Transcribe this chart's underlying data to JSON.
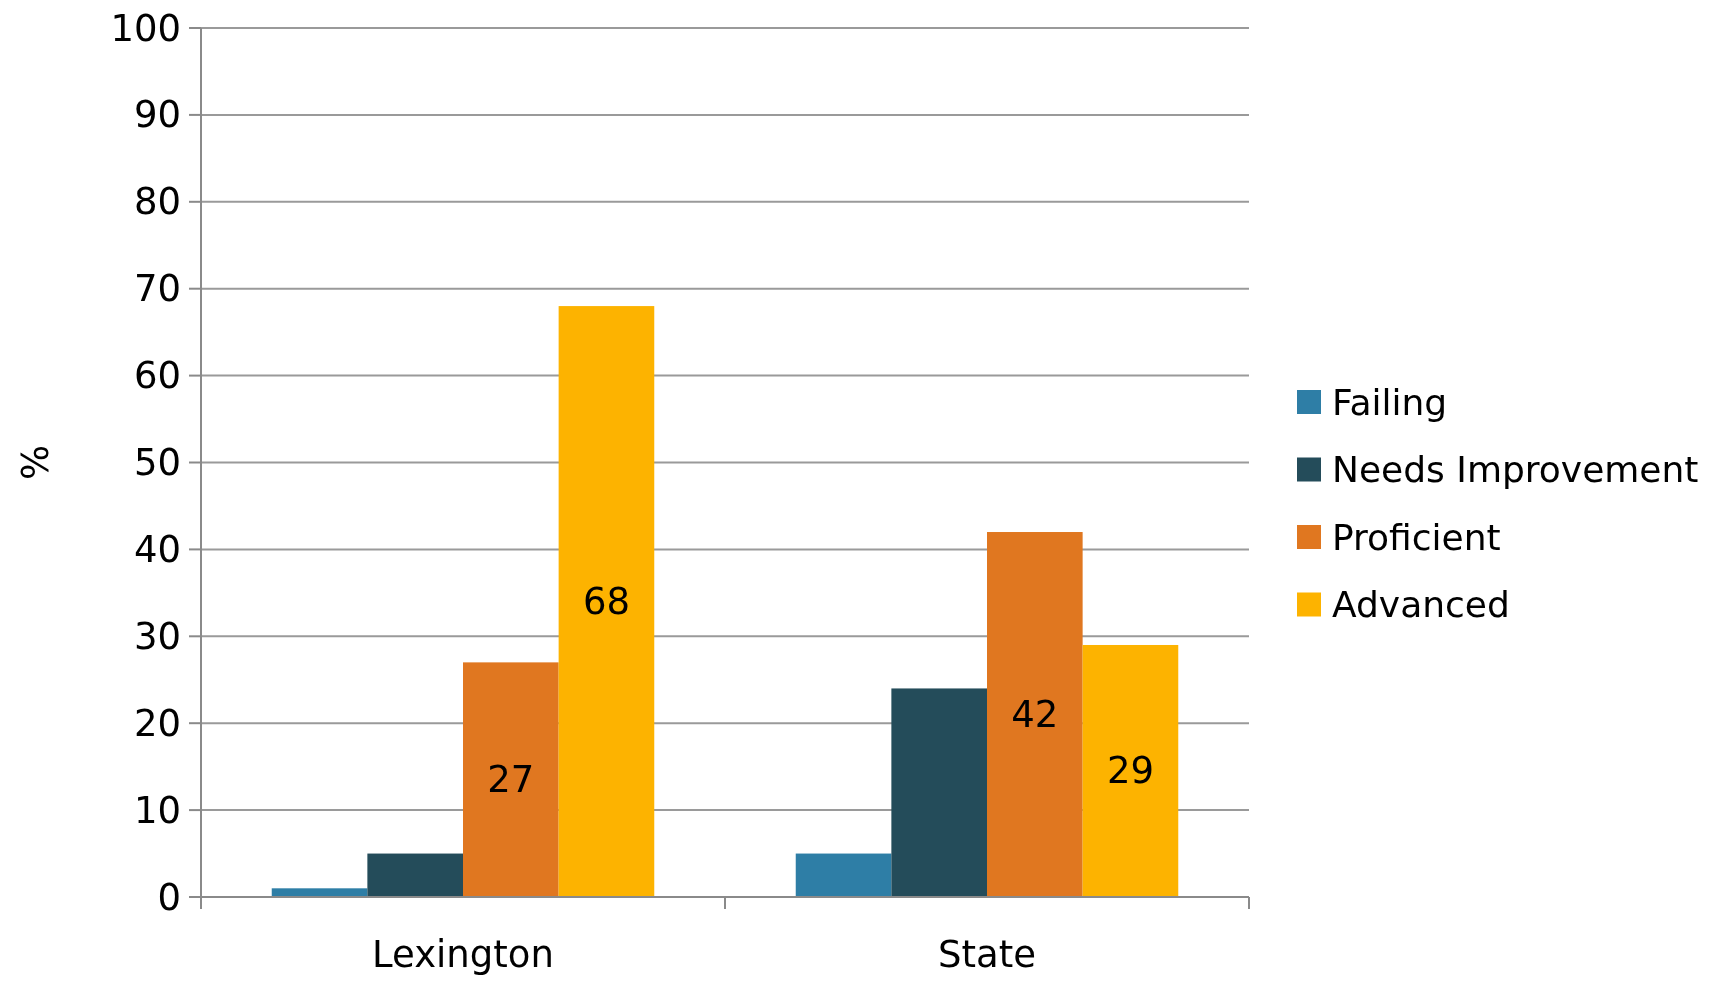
{
  "chart_data": {
    "type": "bar",
    "ylabel": "%",
    "categories": [
      "Lexington",
      "State"
    ],
    "series": [
      {
        "name": "Failing",
        "color": "#2e7ea6",
        "values": [
          1,
          5
        ],
        "value_labels": [
          null,
          null
        ]
      },
      {
        "name": "Needs Improvement",
        "color": "#244c5a",
        "values": [
          5,
          24
        ],
        "value_labels": [
          null,
          null
        ]
      },
      {
        "name": "Proficient",
        "color": "#e07720",
        "values": [
          27,
          42
        ],
        "value_labels": [
          "27",
          "42"
        ]
      },
      {
        "name": "Advanced",
        "color": "#fdb300",
        "values": [
          68,
          29
        ],
        "value_labels": [
          "68",
          "29"
        ]
      }
    ],
    "ylim": [
      0,
      100
    ],
    "yticks": [
      0,
      10,
      20,
      30,
      40,
      50,
      60,
      70,
      80,
      90,
      100
    ],
    "grid": "y",
    "legend": "right"
  }
}
